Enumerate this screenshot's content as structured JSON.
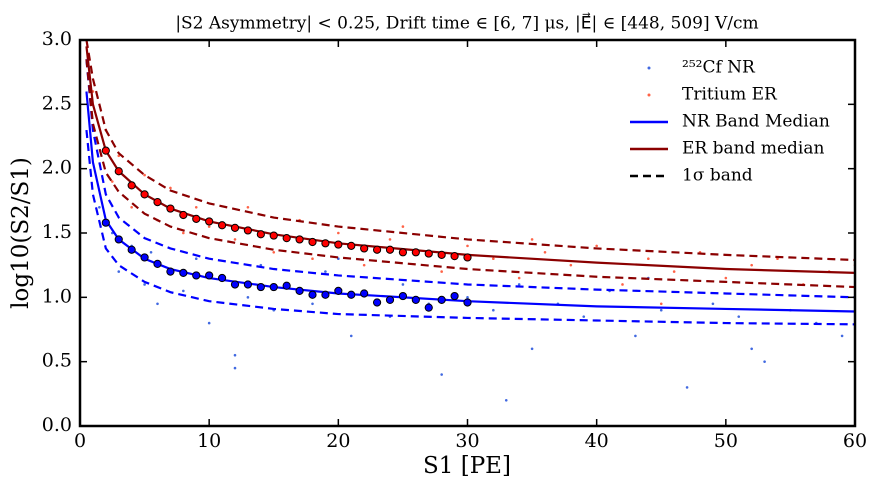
{
  "chart_data": {
    "type": "scatter",
    "title": "|S2 Asymmetry| < 0.25, Drift time ∈ [6, 7] μs,  |E⃗| ∈ [448, 509] V/cm",
    "xlabel": "S1 [PE]",
    "ylabel": "log10(S2/S1)",
    "xlim": [
      0,
      60
    ],
    "ylim": [
      0,
      3
    ],
    "xticks": [
      0,
      10,
      20,
      30,
      40,
      50,
      60
    ],
    "yticks": [
      {
        "value": 0,
        "label": "0.0"
      },
      {
        "value": 0.5,
        "label": "0.5"
      },
      {
        "value": 1,
        "label": "1.0"
      },
      {
        "value": 1.5,
        "label": "1.5"
      },
      {
        "value": 2,
        "label": "2.0"
      },
      {
        "value": 2.5,
        "label": "2.5"
      },
      {
        "value": 3,
        "label": "3.0"
      }
    ],
    "legend": "upper right",
    "band_legend": {
      "name": "1σ band",
      "color": "#000000"
    },
    "series": [
      {
        "name": "²⁵²Cf NR",
        "kind": "scatter",
        "color": "#4169e1",
        "x": [
          1.5,
          2.5,
          3,
          4,
          5,
          5.5,
          6,
          7,
          8,
          9,
          10,
          11,
          12,
          13,
          14,
          15,
          16,
          18,
          19,
          21,
          22,
          24,
          25,
          27,
          28,
          30,
          32,
          34,
          35,
          37,
          39,
          41,
          43,
          45,
          47,
          49,
          51,
          53,
          55,
          57,
          59,
          12,
          20,
          33,
          44,
          52
        ],
        "values": [
          1.7,
          1.5,
          1.2,
          1.4,
          1.1,
          1.35,
          0.95,
          1.2,
          1.05,
          1.3,
          0.8,
          1.15,
          0.55,
          1.0,
          1.25,
          0.9,
          1.1,
          0.95,
          1.2,
          0.7,
          1.05,
          0.85,
          1.1,
          0.95,
          0.4,
          1.0,
          0.9,
          1.1,
          0.6,
          0.95,
          0.85,
          1.05,
          0.7,
          0.9,
          0.3,
          0.95,
          0.85,
          0.5,
          0.9,
          0.8,
          0.7,
          0.45,
          1.3,
          0.2,
          1.15,
          0.6
        ]
      },
      {
        "name": "Tritium ER",
        "kind": "scatter",
        "color": "#ff6347",
        "x": [
          1,
          2,
          2.5,
          3,
          4,
          5,
          6,
          7,
          8,
          9,
          10,
          12,
          13,
          15,
          17,
          18,
          20,
          22,
          24,
          26,
          28,
          30,
          32,
          34,
          36,
          38,
          40,
          42,
          44,
          46,
          48,
          50,
          52,
          54,
          56,
          58,
          60,
          25,
          35,
          45
        ],
        "values": [
          2.6,
          2.3,
          1.9,
          2.1,
          1.7,
          1.95,
          1.6,
          1.85,
          1.5,
          1.7,
          1.55,
          1.45,
          1.7,
          1.35,
          1.6,
          1.3,
          1.5,
          1.25,
          1.45,
          1.35,
          1.2,
          1.4,
          1.3,
          1.15,
          1.35,
          1.25,
          1.4,
          1.1,
          1.3,
          1.2,
          1.35,
          1.15,
          1.25,
          1.3,
          1.1,
          1.2,
          1.25,
          1.55,
          1.45,
          0.95
        ]
      },
      {
        "name": "NR Band Median",
        "kind": "line",
        "color": "#0000ff",
        "x": [
          0.5,
          1,
          2,
          3,
          5,
          7,
          10,
          15,
          20,
          30,
          40,
          50,
          60
        ],
        "values": [
          2.6,
          2.05,
          1.6,
          1.45,
          1.3,
          1.22,
          1.15,
          1.08,
          1.03,
          0.97,
          0.93,
          0.91,
          0.89
        ]
      },
      {
        "name": "ER band median",
        "kind": "line",
        "color": "#8b0000",
        "x": [
          0.5,
          1,
          2,
          3,
          5,
          7,
          10,
          15,
          20,
          30,
          40,
          50,
          60
        ],
        "values": [
          2.95,
          2.5,
          2.14,
          1.98,
          1.8,
          1.69,
          1.59,
          1.49,
          1.42,
          1.33,
          1.27,
          1.22,
          1.19
        ]
      },
      {
        "kind": "dashed",
        "color": "#0000ff",
        "x": [
          0.5,
          1,
          2,
          3,
          5,
          7,
          10,
          15,
          20,
          30,
          40,
          50,
          60
        ],
        "values": [
          2.85,
          2.3,
          1.8,
          1.62,
          1.46,
          1.38,
          1.3,
          1.22,
          1.17,
          1.1,
          1.06,
          1.03,
          1.0
        ]
      },
      {
        "kind": "dashed",
        "color": "#0000ff",
        "x": [
          0.5,
          1,
          2,
          3,
          5,
          7,
          10,
          15,
          20,
          30,
          40,
          50,
          60
        ],
        "values": [
          2.3,
          1.8,
          1.38,
          1.25,
          1.12,
          1.04,
          0.97,
          0.91,
          0.87,
          0.84,
          0.82,
          0.8,
          0.79
        ]
      },
      {
        "kind": "dashed",
        "color": "#8b0000",
        "x": [
          0.5,
          1,
          2,
          3,
          5,
          7,
          10,
          15,
          20,
          30,
          40,
          50,
          60
        ],
        "values": [
          3.0,
          2.7,
          2.3,
          2.12,
          1.95,
          1.83,
          1.73,
          1.62,
          1.55,
          1.45,
          1.38,
          1.33,
          1.29
        ]
      },
      {
        "kind": "dashed",
        "color": "#8b0000",
        "x": [
          0.5,
          1,
          2,
          3,
          5,
          7,
          10,
          15,
          20,
          30,
          40,
          50,
          60
        ],
        "values": [
          2.85,
          2.35,
          1.97,
          1.82,
          1.65,
          1.55,
          1.46,
          1.37,
          1.31,
          1.22,
          1.16,
          1.12,
          1.08
        ]
      },
      {
        "kind": "points",
        "color": "#0000ff",
        "x": [
          2,
          3,
          4,
          5,
          6,
          7,
          8,
          9,
          10,
          11,
          12,
          13,
          14,
          15,
          16,
          17,
          18,
          19,
          20,
          21,
          22,
          23,
          24,
          25,
          26,
          27,
          28,
          29,
          30
        ],
        "values": [
          1.58,
          1.45,
          1.37,
          1.31,
          1.26,
          1.2,
          1.19,
          1.17,
          1.17,
          1.15,
          1.1,
          1.1,
          1.08,
          1.08,
          1.09,
          1.05,
          1.02,
          1.02,
          1.05,
          1.02,
          1.03,
          0.96,
          0.98,
          1.01,
          0.98,
          0.92,
          0.98,
          1.01,
          0.96
        ]
      },
      {
        "kind": "points",
        "color": "#ff0000",
        "x": [
          2,
          3,
          4,
          5,
          6,
          7,
          8,
          9,
          10,
          11,
          12,
          13,
          14,
          15,
          16,
          17,
          18,
          19,
          20,
          21,
          22,
          23,
          24,
          25,
          26,
          27,
          28,
          29,
          30
        ],
        "values": [
          2.14,
          1.98,
          1.87,
          1.8,
          1.74,
          1.69,
          1.64,
          1.61,
          1.59,
          1.56,
          1.54,
          1.52,
          1.49,
          1.48,
          1.46,
          1.45,
          1.43,
          1.42,
          1.41,
          1.4,
          1.38,
          1.37,
          1.37,
          1.35,
          1.35,
          1.34,
          1.33,
          1.32,
          1.31
        ]
      }
    ]
  }
}
